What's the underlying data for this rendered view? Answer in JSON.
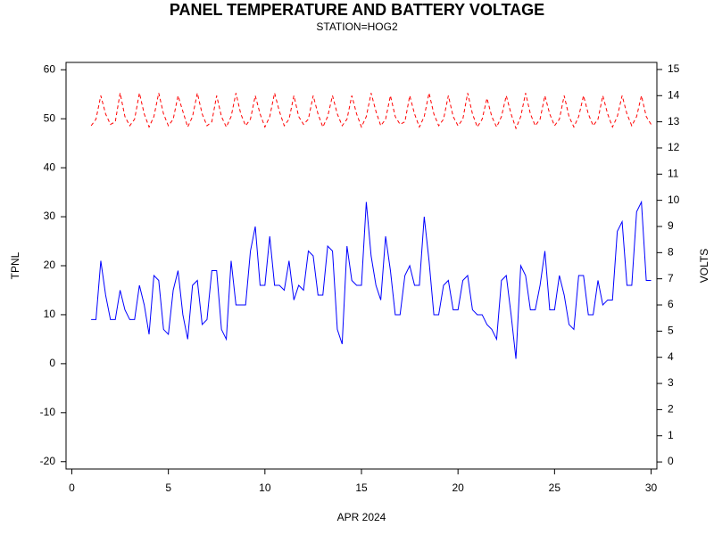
{
  "chart_data": {
    "type": "line",
    "title": "PANEL TEMPERATURE AND BATTERY VOLTAGE",
    "subtitle": "STATION=HOG2",
    "x_label": "APR 2024",
    "y_label": "TPNL",
    "y2_label": "VOLTS",
    "x": [
      1,
      1.25,
      1.5,
      1.75,
      2,
      2.25,
      2.5,
      2.75,
      3,
      3.25,
      3.5,
      3.75,
      4,
      4.25,
      4.5,
      4.75,
      5,
      5.25,
      5.5,
      5.75,
      6,
      6.25,
      6.5,
      6.75,
      7,
      7.25,
      7.5,
      7.75,
      8,
      8.25,
      8.5,
      8.75,
      9,
      9.25,
      9.5,
      9.75,
      10,
      10.25,
      10.5,
      10.75,
      11,
      11.25,
      11.5,
      11.75,
      12,
      12.25,
      12.5,
      12.75,
      13,
      13.25,
      13.5,
      13.75,
      14,
      14.25,
      14.5,
      14.75,
      15,
      15.25,
      15.5,
      15.75,
      16,
      16.25,
      16.5,
      16.75,
      17,
      17.25,
      17.5,
      17.75,
      18,
      18.25,
      18.5,
      18.75,
      19,
      19.25,
      19.5,
      19.75,
      20,
      20.25,
      20.5,
      20.75,
      21,
      21.25,
      21.5,
      21.75,
      22,
      22.25,
      22.5,
      22.75,
      23,
      23.25,
      23.5,
      23.75,
      24,
      24.25,
      24.5,
      24.75,
      25,
      25.25,
      25.5,
      25.75,
      26,
      26.25,
      26.5,
      26.75,
      27,
      27.25,
      27.5,
      27.75,
      28,
      28.25,
      28.5,
      28.75,
      29,
      29.25,
      29.5,
      29.75,
      30
    ],
    "series": [
      {
        "name": "TPNL",
        "color": "#0000ff",
        "dash": false,
        "values": [
          9,
          9,
          21,
          14,
          9,
          9,
          15,
          11,
          9,
          9,
          16,
          12,
          6,
          18,
          17,
          7,
          6,
          15,
          19,
          10,
          5,
          16,
          17,
          8,
          9,
          19,
          19,
          7,
          5,
          21,
          12,
          12,
          12,
          23,
          28,
          16,
          16,
          26,
          16,
          16,
          15,
          21,
          13,
          16,
          15,
          23,
          22,
          14,
          14,
          24,
          23,
          7,
          4,
          24,
          17,
          16,
          16,
          33,
          22,
          16,
          13,
          26,
          19,
          10,
          10,
          18,
          20,
          16,
          16,
          30,
          21,
          10,
          10,
          16,
          17,
          11,
          11,
          17,
          18,
          11,
          10,
          10,
          8,
          7,
          5,
          17,
          18,
          10,
          1,
          20,
          18,
          11,
          11,
          16,
          23,
          11,
          11,
          18,
          14,
          8,
          7,
          18,
          18,
          10,
          10,
          17,
          12,
          13,
          13,
          27,
          29,
          16,
          16,
          31,
          33,
          17,
          17
        ]
      },
      {
        "name": "VOLTS",
        "color": "#ff0000",
        "dash": true,
        "axis": "y2",
        "values": [
          12.85,
          13.1,
          14.0,
          13.3,
          12.9,
          13.0,
          14.1,
          13.2,
          12.85,
          13.1,
          14.1,
          13.3,
          12.8,
          13.2,
          14.1,
          13.3,
          12.85,
          13.1,
          14.0,
          13.4,
          12.8,
          13.2,
          14.1,
          13.3,
          12.85,
          13.0,
          14.0,
          13.2,
          12.8,
          13.2,
          14.1,
          13.3,
          12.85,
          13.1,
          14.0,
          13.3,
          12.8,
          13.2,
          14.1,
          13.4,
          12.85,
          13.1,
          14.0,
          13.2,
          12.9,
          13.1,
          14.0,
          13.3,
          12.8,
          13.2,
          14.0,
          13.3,
          12.85,
          13.1,
          14.0,
          13.3,
          12.8,
          13.2,
          14.1,
          13.4,
          12.85,
          13.1,
          14.0,
          13.2,
          12.9,
          13.0,
          14.0,
          13.3,
          12.8,
          13.2,
          14.1,
          13.3,
          12.85,
          13.1,
          14.0,
          13.2,
          12.85,
          13.1,
          14.1,
          13.3,
          12.8,
          13.1,
          13.9,
          13.2,
          12.8,
          13.2,
          14.0,
          13.3,
          12.75,
          13.2,
          14.1,
          13.3,
          12.85,
          13.1,
          14.0,
          13.3,
          12.85,
          13.1,
          14.0,
          13.2,
          12.8,
          13.2,
          14.0,
          13.3,
          12.85,
          13.1,
          14.0,
          13.3,
          12.8,
          13.2,
          14.0,
          13.3,
          12.85,
          13.2,
          14.0,
          13.2,
          12.9
        ]
      }
    ],
    "xlim": [
      -0.3,
      30.3
    ],
    "ylim": [
      -21.5,
      61.5
    ],
    "y2lim": [
      -0.27,
      15.27
    ],
    "xticks": [
      0,
      5,
      10,
      15,
      20,
      25,
      30
    ],
    "yticks": [
      -20,
      -10,
      0,
      10,
      20,
      30,
      40,
      50,
      60
    ],
    "y2ticks": [
      0,
      1,
      2,
      3,
      4,
      5,
      6,
      7,
      8,
      9,
      10,
      11,
      12,
      13,
      14,
      15
    ]
  }
}
